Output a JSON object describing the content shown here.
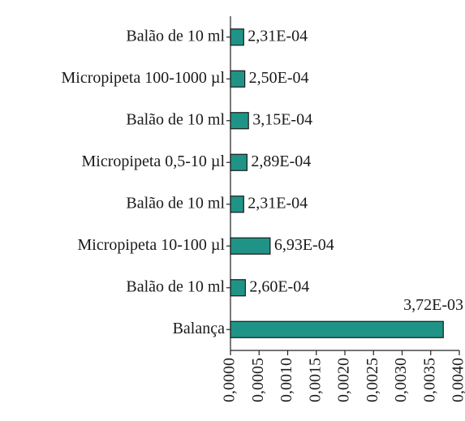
{
  "chart_data": {
    "type": "bar",
    "orientation": "horizontal",
    "categories": [
      "Balão de 10 ml",
      "Micropipeta 100-1000 µl",
      "Balão de 10 ml",
      "Micropipeta 0,5-10 µl",
      "Balão de 10 ml",
      "Micropipeta 10-100 µl",
      "Balão de 10 ml",
      "Balança"
    ],
    "values": [
      0.000231,
      0.00025,
      0.000315,
      0.000289,
      0.000231,
      0.000693,
      0.00026,
      0.00372
    ],
    "value_labels": [
      "2,31E-04",
      "2,50E-04",
      "3,15E-04",
      "2,89E-04",
      "2,31E-04",
      "6,93E-04",
      "2,60E-04",
      "3,72E-03"
    ],
    "color": "#1f9486",
    "xlim": [
      0,
      0.004
    ],
    "xticks": [
      {
        "value": 0,
        "label": "0,0000"
      },
      {
        "value": 0.0005,
        "label": "0,0005"
      },
      {
        "value": 0.001,
        "label": "0,0010"
      },
      {
        "value": 0.0015,
        "label": "0,0015"
      },
      {
        "value": 0.002,
        "label": "0,0020"
      },
      {
        "value": 0.0025,
        "label": "0,0025"
      },
      {
        "value": 0.003,
        "label": "0,0030"
      },
      {
        "value": 0.0035,
        "label": "0,0035"
      },
      {
        "value": 0.004,
        "label": "0,0040"
      }
    ]
  }
}
